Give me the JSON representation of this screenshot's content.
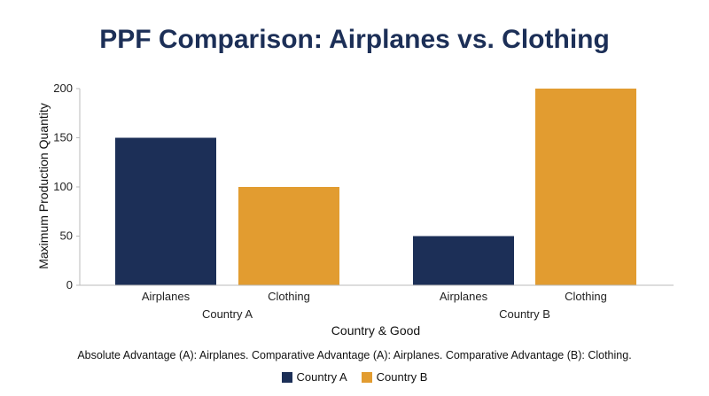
{
  "chart_data": {
    "type": "bar",
    "title": "PPF Comparison: Airplanes vs. Clothing",
    "xlabel": "Country & Good",
    "ylabel": "Maximum Production Quantity",
    "ylim": [
      0,
      200
    ],
    "yticks": [
      0,
      50,
      100,
      150,
      200
    ],
    "groups": [
      {
        "label": "Country A",
        "categories": [
          "Airplanes",
          "Clothing"
        ]
      },
      {
        "label": "Country B",
        "categories": [
          "Airplanes",
          "Clothing"
        ]
      }
    ],
    "bars": [
      {
        "group": "Country A",
        "category": "Airplanes",
        "series": "Country A",
        "value": 150
      },
      {
        "group": "Country A",
        "category": "Clothing",
        "series": "Country B",
        "value": 100
      },
      {
        "group": "Country B",
        "category": "Airplanes",
        "series": "Country A",
        "value": 50
      },
      {
        "group": "Country B",
        "category": "Clothing",
        "series": "Country B",
        "value": 200
      }
    ],
    "series": [
      {
        "name": "Country A",
        "color": "#1c2f57"
      },
      {
        "name": "Country B",
        "color": "#e29c30"
      }
    ],
    "legend_position": "bottom-center",
    "grid": false,
    "annotation": "Absolute Advantage (A): Airplanes. Comparative Advantage (A): Airplanes. Comparative Advantage (B): Clothing."
  }
}
